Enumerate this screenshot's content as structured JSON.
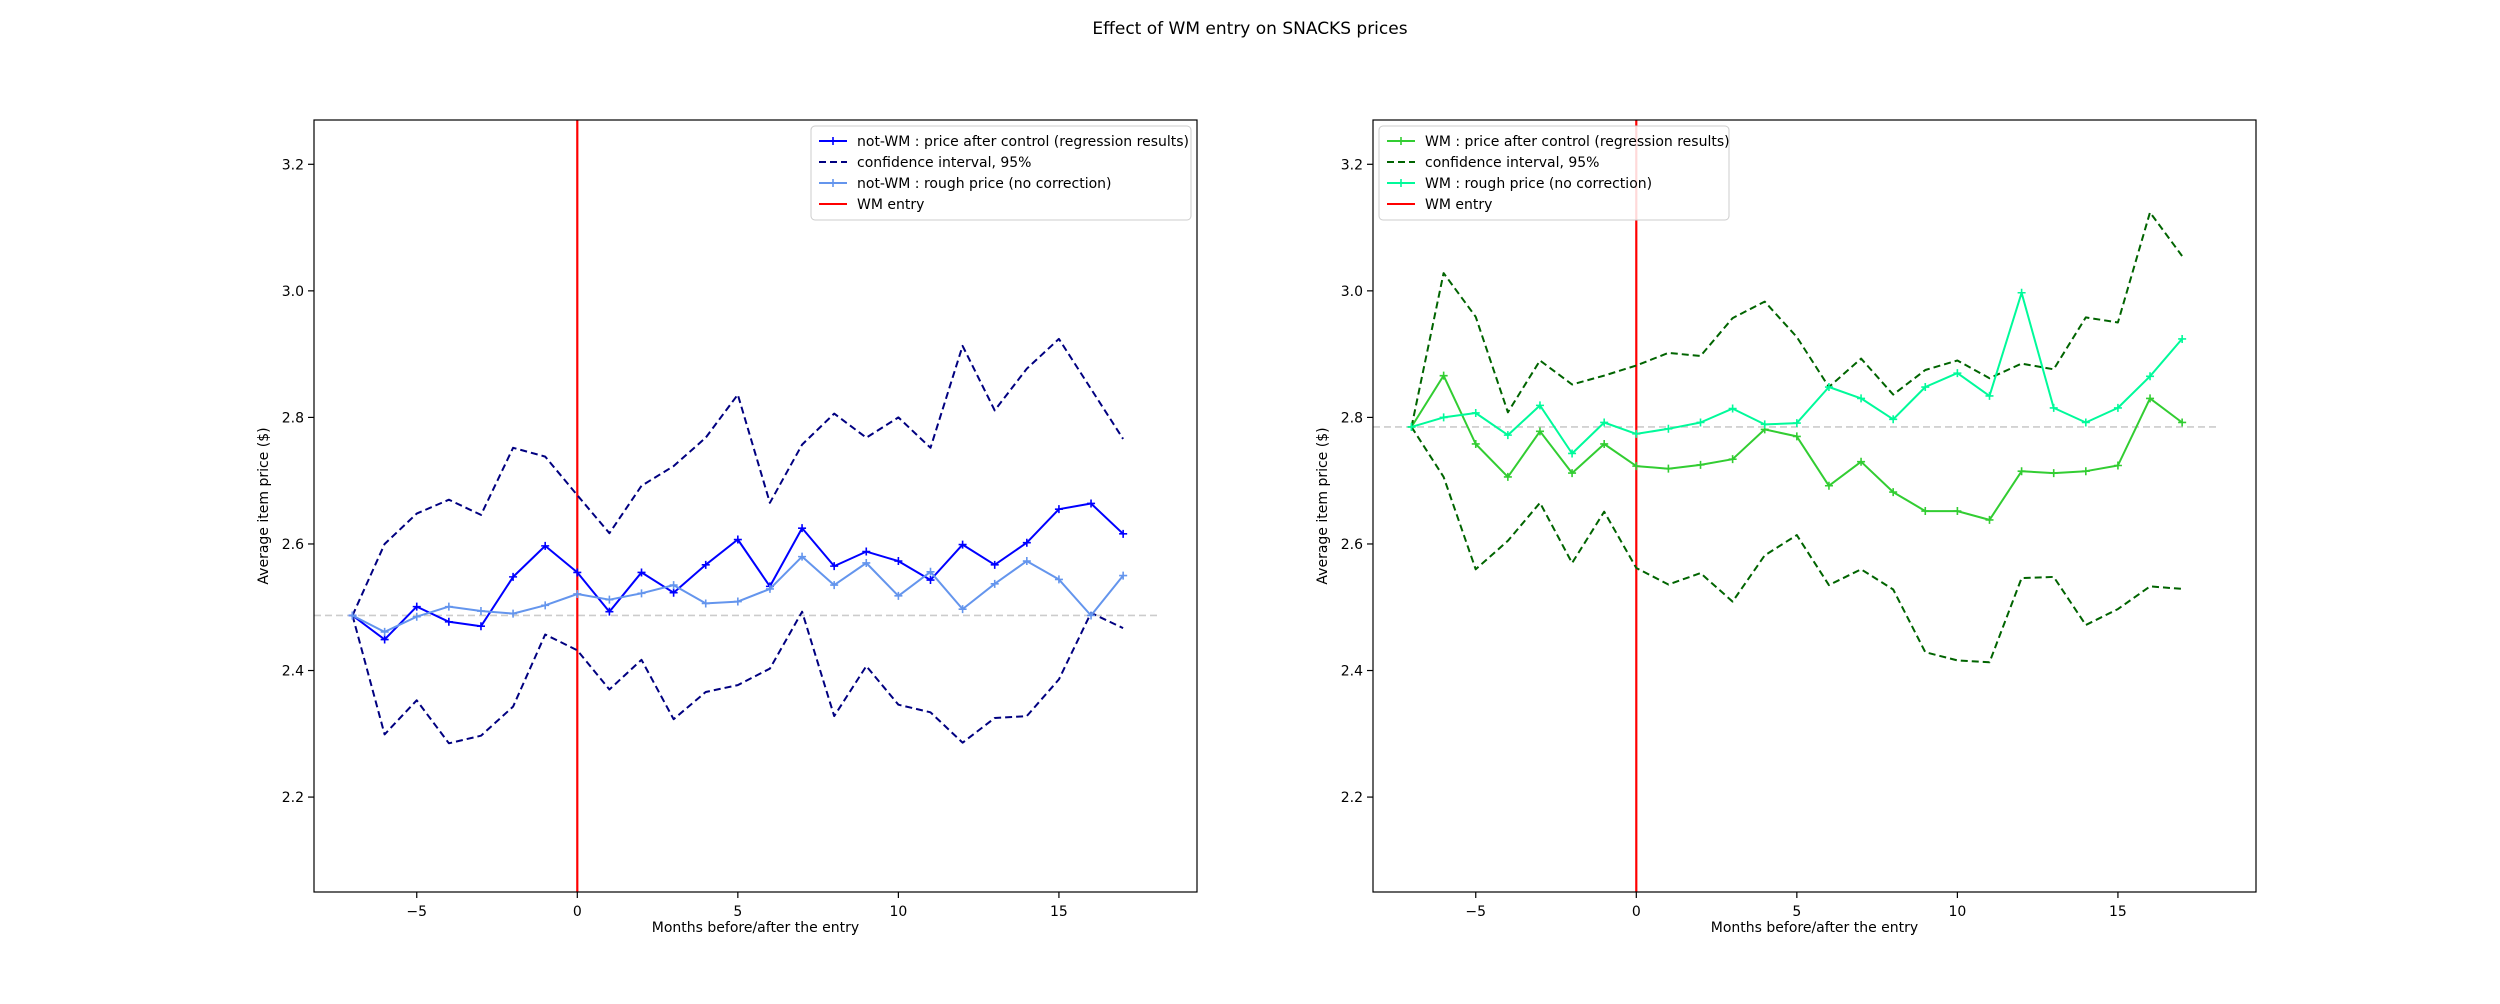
{
  "figure": {
    "suptitle": "Effect of WM entry on SNACKS prices"
  },
  "chart_data": [
    {
      "type": "line",
      "xlabel": "Months before/after the entry",
      "ylabel": "Average item price ($)",
      "xlim": [
        -8.2,
        19.3
      ],
      "ylim": [
        2.05,
        3.27
      ],
      "xticks": [
        -5,
        0,
        5,
        10,
        15
      ],
      "xtick_labels": [
        "−5",
        "0",
        "5",
        "10",
        "15"
      ],
      "yticks": [
        2.2,
        2.4,
        2.6,
        2.8,
        3.0,
        3.2
      ],
      "ytick_labels": [
        "2.2",
        "2.4",
        "2.6",
        "2.8",
        "3.0",
        "3.2"
      ],
      "legend_position": "top-right",
      "reference_line": {
        "y": 2.487,
        "color": "#cccccc",
        "style": "dashed"
      },
      "vline": {
        "x": 0,
        "name": "WM entry",
        "color": "#ff0000"
      },
      "x": [
        -7,
        -6,
        -5,
        -4,
        -3,
        -2,
        -1,
        0,
        1,
        2,
        3,
        4,
        5,
        6,
        7,
        8,
        9,
        10,
        11,
        12,
        13,
        14,
        15,
        16,
        17
      ],
      "series": [
        {
          "name": "not-WM : price after control (regression results)",
          "color": "#0000ff",
          "style": "solid",
          "marker": "plus",
          "values": [
            2.487,
            2.449,
            2.501,
            2.477,
            2.47,
            2.548,
            2.597,
            2.555,
            2.493,
            2.555,
            2.523,
            2.567,
            2.607,
            2.533,
            2.625,
            2.565,
            2.588,
            2.573,
            2.543,
            2.599,
            2.567,
            2.602,
            2.655,
            2.664,
            2.616
          ]
        },
        {
          "name": "confidence interval, 95%",
          "color": "#000080",
          "style": "dashed",
          "marker": "none",
          "values": [
            2.487,
            2.6,
            2.648,
            2.67,
            2.646,
            2.752,
            2.738,
            2.677,
            2.617,
            2.692,
            2.723,
            2.768,
            2.836,
            2.665,
            2.757,
            2.806,
            2.768,
            2.8,
            2.752,
            2.913,
            2.811,
            2.877,
            2.924,
            2.845,
            2.766
          ]
        },
        {
          "name": "",
          "color": "#000080",
          "style": "dashed",
          "marker": "none",
          "values": [
            2.487,
            2.299,
            2.353,
            2.285,
            2.297,
            2.343,
            2.457,
            2.432,
            2.37,
            2.417,
            2.323,
            2.366,
            2.377,
            2.403,
            2.493,
            2.328,
            2.407,
            2.346,
            2.334,
            2.286,
            2.325,
            2.328,
            2.386,
            2.491,
            2.467
          ]
        },
        {
          "name": "not-WM : rough price (no correction)",
          "color": "#6495ed",
          "style": "solid",
          "marker": "plus",
          "values": [
            2.487,
            2.461,
            2.485,
            2.501,
            2.494,
            2.49,
            2.503,
            2.521,
            2.512,
            2.522,
            2.535,
            2.506,
            2.509,
            2.529,
            2.58,
            2.535,
            2.57,
            2.518,
            2.556,
            2.497,
            2.537,
            2.573,
            2.544,
            2.487,
            2.55
          ]
        }
      ]
    },
    {
      "type": "line",
      "xlabel": "Months before/after the entry",
      "ylabel": "Average item price ($)",
      "xlim": [
        -8.2,
        19.3
      ],
      "ylim": [
        2.05,
        3.27
      ],
      "xticks": [
        -5,
        0,
        5,
        10,
        15
      ],
      "xtick_labels": [
        "−5",
        "0",
        "5",
        "10",
        "15"
      ],
      "yticks": [
        2.2,
        2.4,
        2.6,
        2.8,
        3.0,
        3.2
      ],
      "ytick_labels": [
        "2.2",
        "2.4",
        "2.6",
        "2.8",
        "3.0",
        "3.2"
      ],
      "legend_position": "top-left",
      "reference_line": {
        "y": 2.785,
        "color": "#cccccc",
        "style": "dashed"
      },
      "vline": {
        "x": 0,
        "name": "WM entry",
        "color": "#ff0000"
      },
      "x": [
        -7,
        -6,
        -5,
        -4,
        -3,
        -2,
        -1,
        0,
        1,
        2,
        3,
        4,
        5,
        6,
        7,
        8,
        9,
        10,
        11,
        12,
        13,
        14,
        15,
        16,
        17
      ],
      "series": [
        {
          "name": "WM : price after control (regression results)",
          "color": "#32cd32",
          "style": "solid",
          "marker": "plus",
          "values": [
            2.785,
            2.866,
            2.758,
            2.706,
            2.778,
            2.712,
            2.758,
            2.723,
            2.719,
            2.725,
            2.734,
            2.781,
            2.77,
            2.692,
            2.73,
            2.682,
            2.652,
            2.652,
            2.638,
            2.715,
            2.712,
            2.715,
            2.724,
            2.83,
            2.792
          ]
        },
        {
          "name": "confidence interval, 95%",
          "color": "#006400",
          "style": "dashed",
          "marker": "none",
          "values": [
            2.785,
            3.028,
            2.959,
            2.808,
            2.89,
            2.852,
            2.866,
            2.882,
            2.902,
            2.897,
            2.957,
            2.983,
            2.927,
            2.848,
            2.893,
            2.836,
            2.875,
            2.89,
            2.862,
            2.885,
            2.876,
            2.958,
            2.95,
            3.124,
            3.055
          ]
        },
        {
          "name": "",
          "color": "#006400",
          "style": "dashed",
          "marker": "none",
          "values": [
            2.785,
            2.706,
            2.56,
            2.605,
            2.665,
            2.57,
            2.651,
            2.562,
            2.536,
            2.554,
            2.509,
            2.582,
            2.614,
            2.535,
            2.56,
            2.528,
            2.429,
            2.416,
            2.413,
            2.546,
            2.548,
            2.472,
            2.497,
            2.533,
            2.529
          ]
        },
        {
          "name": "WM : rough price (no correction)",
          "color": "#00fa9a",
          "style": "solid",
          "marker": "plus",
          "values": [
            2.785,
            2.8,
            2.807,
            2.772,
            2.819,
            2.743,
            2.792,
            2.774,
            2.782,
            2.792,
            2.814,
            2.789,
            2.791,
            2.848,
            2.83,
            2.797,
            2.848,
            2.87,
            2.834,
            2.997,
            2.815,
            2.792,
            2.815,
            2.865,
            2.924
          ]
        }
      ]
    }
  ]
}
